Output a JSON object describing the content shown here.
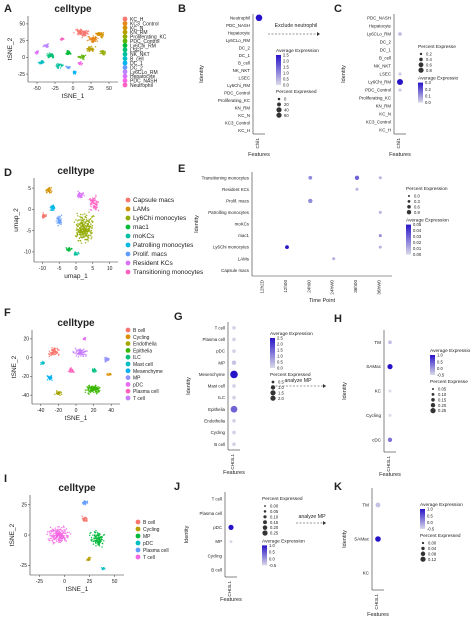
{
  "panels": {
    "A": {
      "letter": "A",
      "title": "celltype",
      "xlabel": "tSNE_1",
      "ylabel": "tSNE_2",
      "xticks": [
        "-50",
        "-25",
        "0",
        "25",
        "50"
      ],
      "yticks": [
        "50",
        "25",
        "0",
        "-25"
      ],
      "legend": [
        {
          "label": "KC_H",
          "color": "#f8766d"
        },
        {
          "label": "KC3_Control",
          "color": "#e7861b"
        },
        {
          "label": "KC_N",
          "color": "#d39200"
        },
        {
          "label": "KN_RM",
          "color": "#b79f00"
        },
        {
          "label": "Proliferating_KC",
          "color": "#93aa00"
        },
        {
          "label": "PDC_Control",
          "color": "#5eb300"
        },
        {
          "label": "Ly6Chi_RM",
          "color": "#00ba38"
        },
        {
          "label": "LSEC",
          "color": "#00bf74"
        },
        {
          "label": "NK_NKT",
          "color": "#00c19f"
        },
        {
          "label": "B_cell",
          "color": "#00bfc4"
        },
        {
          "label": "DC_1",
          "color": "#00b4f0"
        },
        {
          "label": "DC_2",
          "color": "#619cff"
        },
        {
          "label": "Ly6CLo_RM",
          "color": "#b983ff"
        },
        {
          "label": "Hepatocyte",
          "color": "#db72fb"
        },
        {
          "label": "PDC_NASH",
          "color": "#f564e3"
        },
        {
          "label": "Neutrophil",
          "color": "#ff61c3"
        }
      ]
    },
    "B": {
      "letter": "B",
      "xlabel": "Features",
      "ylabel": "Identity",
      "xcat": [
        "Chil1"
      ],
      "rows": [
        "Neutrophil",
        "PDC_NASH",
        "Hepatocyte",
        "Ly6CLo_RM",
        "DC_2",
        "DC_1",
        "B_cell",
        "NK_NKT",
        "LSEC",
        "Ly6Chi_RM",
        "PDC_Control",
        "Proliferating_KC",
        "KN_RM",
        "KC_N",
        "KC3_Control",
        "KC_H"
      ],
      "note": "Exclude neutrophil",
      "leg_avg_title": "Average Expression",
      "leg_avg_ticks": [
        "2.5",
        "2.0",
        "1.5",
        "1.0",
        "0.5",
        "0.0"
      ],
      "leg_pct_title": "Percent Expressed",
      "leg_pct_ticks": [
        "0",
        "20",
        "40",
        "60"
      ]
    },
    "C": {
      "letter": "C",
      "xlabel": "Features",
      "ylabel": "Identity",
      "xcat": [
        "Chil1"
      ],
      "rows": [
        "PDC_NASH",
        "Hepatocyte",
        "Ly6CLo_RM",
        "DC_2",
        "DC_1",
        "B_cell",
        "NK_NKT",
        "LSEC",
        "Ly6Chi_RM",
        "PDC_Control",
        "Proliferating_KC",
        "KN_RM",
        "KC_N",
        "KC3_Control",
        "KC_H"
      ],
      "leg_pct_title": "Percent Expresse",
      "leg_pct_ticks": [
        "0.2",
        "0.4",
        "0.6",
        "0.8"
      ],
      "leg_avg_title": "Average Expressio",
      "leg_avg_ticks": [
        "0.3",
        "0.2",
        "0.1",
        "0.0"
      ]
    },
    "D": {
      "letter": "D",
      "title": "celltype",
      "xlabel": "umap_1",
      "ylabel": "umap_2",
      "xticks": [
        "-10",
        "-5",
        "0",
        "5",
        "10"
      ],
      "yticks": [
        "5",
        "0",
        "-5",
        "-10"
      ],
      "legend": [
        {
          "label": "Capsule macs",
          "color": "#f8766d"
        },
        {
          "label": "LAMs",
          "color": "#d39200"
        },
        {
          "label": "Ly6Chi monocytes",
          "color": "#93aa00"
        },
        {
          "label": "mac1",
          "color": "#00ba38"
        },
        {
          "label": "moKCs",
          "color": "#00c19f"
        },
        {
          "label": "Patrolling monocytes",
          "color": "#00b9e3"
        },
        {
          "label": "Prolif. macs",
          "color": "#619cff"
        },
        {
          "label": "Resident KCs",
          "color": "#db72fb"
        },
        {
          "label": "Transitioning monocytes",
          "color": "#ff61c3"
        }
      ]
    },
    "E": {
      "letter": "E",
      "xlabel": "Time Point",
      "ylabel": "Identity",
      "xcat": [
        "12h2D",
        "12h00",
        "24h00",
        "24hW0",
        "36h00",
        "36hW0"
      ],
      "rows": [
        "Transitioning monocytes",
        "Resident KCs",
        "Prolif. macs",
        "Patrolling monocytes",
        "moKCs",
        "mac1",
        "Ly6Chi monocytes",
        "LAMs",
        "Capsule macs"
      ],
      "leg_pct_title": "Percent Expression",
      "leg_pct_ticks": [
        "0.0",
        "0.3",
        "0.6",
        "0.9"
      ],
      "leg_avg_title": "Average Expression",
      "leg_avg_ticks": [
        "0.05",
        "0.04",
        "0.03",
        "0.02",
        "0.01",
        "0.00"
      ]
    },
    "F": {
      "letter": "F",
      "title": "celltype",
      "xlabel": "tSNE_1",
      "ylabel": "tSNE_2",
      "xticks": [
        "-40",
        "-20",
        "0",
        "20",
        "40"
      ],
      "yticks": [
        "20",
        "0",
        "-20",
        "-40"
      ],
      "legend": [
        {
          "label": "B cell",
          "color": "#f8766d"
        },
        {
          "label": "Cycling",
          "color": "#d89000"
        },
        {
          "label": "Endothelia",
          "color": "#a3a500"
        },
        {
          "label": "Epithelia",
          "color": "#39b600"
        },
        {
          "label": "ILC",
          "color": "#00bf7d"
        },
        {
          "label": "Mast cell",
          "color": "#00bfc4"
        },
        {
          "label": "Mesenchyme",
          "color": "#00b0f6"
        },
        {
          "label": "MP",
          "color": "#9590ff"
        },
        {
          "label": "pDC",
          "color": "#e76bf3"
        },
        {
          "label": "Plasma cell",
          "color": "#ff62bc"
        },
        {
          "label": "T cell",
          "color": "#c77cff"
        }
      ]
    },
    "G": {
      "letter": "G",
      "xlabel": "Features",
      "ylabel": "Identity",
      "xcat": [
        "CHI3L1"
      ],
      "rows": [
        "T cell",
        "Plasma cell",
        "pDC",
        "MP",
        "Mesenchyme",
        "Mast cell",
        "ILC",
        "Epithelia",
        "Endothelia",
        "Cycling",
        "B cell"
      ],
      "note": "analyze MP",
      "leg_avg_title": "Average Expression",
      "leg_avg_ticks": [
        "2.5",
        "2.0",
        "1.5",
        "1.0",
        "0.5",
        "0.0"
      ],
      "leg_pct_title": "Percent Expressed",
      "leg_pct_ticks": [
        "0.5",
        "1.0",
        "1.5",
        "2.0"
      ]
    },
    "H": {
      "letter": "H",
      "xlabel": "Features",
      "ylabel": "Identity",
      "xcat": [
        "CHI3L1"
      ],
      "rows": [
        "TM",
        "SAMac",
        "KC",
        "Cycling",
        "cDC"
      ],
      "leg_avg_title": "Average Expressio",
      "leg_avg_ticks": [
        "1.0",
        "0.5",
        "0.0",
        "-0.5"
      ],
      "leg_pct_title": "Percent Expresse",
      "leg_pct_ticks": [
        "0.05",
        "0.10",
        "0.15",
        "0.20",
        "0.25"
      ]
    },
    "I": {
      "letter": "I",
      "title": "celltype",
      "xlabel": "tSNE_1",
      "ylabel": "tSNE_2",
      "xticks": [
        "-25",
        "0",
        "25",
        "50"
      ],
      "yticks": [
        "25",
        "0",
        "-25"
      ],
      "legend": [
        {
          "label": "B cell",
          "color": "#f8766d"
        },
        {
          "label": "Cycling",
          "color": "#b79f00"
        },
        {
          "label": "MP",
          "color": "#00ba38"
        },
        {
          "label": "pDC",
          "color": "#00bfc4"
        },
        {
          "label": "Plasma cell",
          "color": "#619cff"
        },
        {
          "label": "T cell",
          "color": "#f564e3"
        }
      ]
    },
    "J": {
      "letter": "J",
      "xlabel": "Features",
      "ylabel": "Identity",
      "xcat": [
        "CHI3L1"
      ],
      "rows": [
        "T cell",
        "Plasma cell",
        "pDC",
        "MP",
        "Cycling",
        "B cell"
      ],
      "note": "analyze MP",
      "leg_pct_title": "Percent Expressed",
      "leg_pct_ticks": [
        "0.00",
        "0.05",
        "0.10",
        "0.15",
        "0.20",
        "0.25"
      ],
      "leg_avg_title": "Average Expression",
      "leg_avg_ticks": [
        "1.0",
        "0.5",
        "0.0",
        "-0.5"
      ]
    },
    "K": {
      "letter": "K",
      "xlabel": "Features",
      "ylabel": "Identity",
      "xcat": [
        "CHI3L1"
      ],
      "rows": [
        "TM",
        "SAMac",
        "KC"
      ],
      "leg_avg_title": "Average Expression",
      "leg_avg_ticks": [
        "1.0",
        "0.5",
        "0.0",
        "-0.5"
      ],
      "leg_pct_title": "Percent Expressed",
      "leg_pct_ticks": [
        "0.00",
        "0.04",
        "0.08",
        "0.12"
      ]
    }
  },
  "chart_data": [
    {
      "panel": "B",
      "type": "scatter",
      "subtype": "dotplot",
      "x_categories": [
        "Chil1"
      ],
      "y_categories": [
        "Neutrophil",
        "PDC_NASH",
        "Hepatocyte",
        "Ly6CLo_RM",
        "DC_2",
        "DC_1",
        "B_cell",
        "NK_NKT",
        "LSEC",
        "Ly6Chi_RM",
        "PDC_Control",
        "Proliferating_KC",
        "KN_RM",
        "KC_N",
        "KC3_Control",
        "KC_H"
      ],
      "points": [
        {
          "x": "Chil1",
          "y": "Neutrophil",
          "pct": 60,
          "avg": 2.5
        }
      ],
      "xlabel": "Features",
      "ylabel": "Identity"
    },
    {
      "panel": "C",
      "type": "scatter",
      "subtype": "dotplot",
      "x_categories": [
        "Chil1"
      ],
      "y_categories": [
        "PDC_NASH",
        "Hepatocyte",
        "Ly6CLo_RM",
        "DC_2",
        "DC_1",
        "B_cell",
        "NK_NKT",
        "LSEC",
        "Ly6Chi_RM",
        "PDC_Control",
        "Proliferating_KC",
        "KN_RM",
        "KC_N",
        "KC3_Control",
        "KC_H"
      ],
      "points": [
        {
          "x": "Chil1",
          "y": "Ly6Chi_RM",
          "pct": 0.8,
          "avg": 0.3
        },
        {
          "x": "Chil1",
          "y": "Ly6CLo_RM",
          "pct": 0.2,
          "avg": 0.05
        },
        {
          "x": "Chil1",
          "y": "LSEC",
          "pct": 0.15,
          "avg": 0.02
        },
        {
          "x": "Chil1",
          "y": "PDC_Control",
          "pct": 0.15,
          "avg": 0.02
        }
      ],
      "xlabel": "Features",
      "ylabel": "Identity"
    },
    {
      "panel": "E",
      "type": "scatter",
      "subtype": "dotplot",
      "x_categories": [
        "12h2D",
        "12h00",
        "24h00",
        "24hW0",
        "36h00",
        "36hW0"
      ],
      "y_categories": [
        "Transitioning monocytes",
        "Resident KCs",
        "Prolif. macs",
        "Patrolling monocytes",
        "moKCs",
        "mac1",
        "Ly6Chi monocytes",
        "LAMs",
        "Capsule macs"
      ],
      "points": [
        {
          "x": "24h00",
          "y": "Transitioning monocytes",
          "pct": 0.6,
          "avg": 0.02
        },
        {
          "x": "36h00",
          "y": "Transitioning monocytes",
          "pct": 0.9,
          "avg": 0.03
        },
        {
          "x": "36hW0",
          "y": "Transitioning monocytes",
          "pct": 0.3,
          "avg": 0.01
        },
        {
          "x": "36h00",
          "y": "Resident KCs",
          "pct": 0.3,
          "avg": 0.01
        },
        {
          "x": "24h00",
          "y": "Prolif. macs",
          "pct": 0.9,
          "avg": 0.02
        },
        {
          "x": "36hW0",
          "y": "Patrolling monocytes",
          "pct": 0.3,
          "avg": 0.01
        },
        {
          "x": "36hW0",
          "y": "mac1",
          "pct": 0.3,
          "avg": 0.02
        },
        {
          "x": "12h00",
          "y": "Ly6Chi monocytes",
          "pct": 0.6,
          "avg": 0.05
        },
        {
          "x": "36hW0",
          "y": "Ly6Chi monocytes",
          "pct": 0.3,
          "avg": 0.01
        },
        {
          "x": "24hW0",
          "y": "LAMs",
          "pct": 0.3,
          "avg": 0.01
        }
      ],
      "xlabel": "Time Point",
      "ylabel": "Identity"
    },
    {
      "panel": "G",
      "type": "scatter",
      "subtype": "dotplot",
      "x_categories": [
        "CHI3L1"
      ],
      "y_categories": [
        "T cell",
        "Plasma cell",
        "pDC",
        "MP",
        "Mesenchyme",
        "Mast cell",
        "ILC",
        "Epithelia",
        "Endothelia",
        "Cycling",
        "B cell"
      ],
      "points": [
        {
          "x": "CHI3L1",
          "y": "Mesenchyme",
          "pct": 2.0,
          "avg": 2.5
        },
        {
          "x": "CHI3L1",
          "y": "Epithelia",
          "pct": 1.5,
          "avg": 1.5
        },
        {
          "x": "CHI3L1",
          "y": "T cell",
          "pct": 0.3,
          "avg": 0.1
        },
        {
          "x": "CHI3L1",
          "y": "Plasma cell",
          "pct": 0.3,
          "avg": 0.1
        },
        {
          "x": "CHI3L1",
          "y": "pDC",
          "pct": 0.3,
          "avg": 0.1
        },
        {
          "x": "CHI3L1",
          "y": "MP",
          "pct": 0.5,
          "avg": 0.3
        },
        {
          "x": "CHI3L1",
          "y": "Mast cell",
          "pct": 0.3,
          "avg": 0.1
        },
        {
          "x": "CHI3L1",
          "y": "ILC",
          "pct": 0.3,
          "avg": 0.1
        },
        {
          "x": "CHI3L1",
          "y": "Endothelia",
          "pct": 0.3,
          "avg": 0.1
        },
        {
          "x": "CHI3L1",
          "y": "Cycling",
          "pct": 0.3,
          "avg": 0.1
        },
        {
          "x": "CHI3L1",
          "y": "B cell",
          "pct": 0.3,
          "avg": 0.1
        }
      ],
      "xlabel": "Features",
      "ylabel": "Identity"
    },
    {
      "panel": "H",
      "type": "scatter",
      "subtype": "dotplot",
      "x_categories": [
        "CHI3L1"
      ],
      "y_categories": [
        "TM",
        "SAMac",
        "KC",
        "Cycling",
        "cDC"
      ],
      "points": [
        {
          "x": "CHI3L1",
          "y": "TM",
          "pct": 0.1,
          "avg": -0.3
        },
        {
          "x": "CHI3L1",
          "y": "SAMac",
          "pct": 0.25,
          "avg": 1.0
        },
        {
          "x": "CHI3L1",
          "y": "KC",
          "pct": 0.05,
          "avg": -0.5
        },
        {
          "x": "CHI3L1",
          "y": "Cycling",
          "pct": 0.05,
          "avg": -0.5
        },
        {
          "x": "CHI3L1",
          "y": "cDC",
          "pct": 0.15,
          "avg": 0.3
        }
      ],
      "xlabel": "Features",
      "ylabel": "Identity"
    },
    {
      "panel": "J",
      "type": "scatter",
      "subtype": "dotplot",
      "x_categories": [
        "CHI3L1"
      ],
      "y_categories": [
        "T cell",
        "Plasma cell",
        "pDC",
        "MP",
        "Cycling",
        "B cell"
      ],
      "points": [
        {
          "x": "CHI3L1",
          "y": "pDC",
          "pct": 0.25,
          "avg": 1.0
        },
        {
          "x": "CHI3L1",
          "y": "MP",
          "pct": 0.05,
          "avg": -0.5
        }
      ],
      "xlabel": "Features",
      "ylabel": "Identity"
    },
    {
      "panel": "K",
      "type": "scatter",
      "subtype": "dotplot",
      "x_categories": [
        "CHI3L1"
      ],
      "y_categories": [
        "TM",
        "SAMac",
        "KC"
      ],
      "points": [
        {
          "x": "CHI3L1",
          "y": "TM",
          "pct": 0.08,
          "avg": -0.3
        },
        {
          "x": "CHI3L1",
          "y": "SAMac",
          "pct": 0.12,
          "avg": 1.0
        }
      ],
      "xlabel": "Features",
      "ylabel": "Identity"
    }
  ]
}
